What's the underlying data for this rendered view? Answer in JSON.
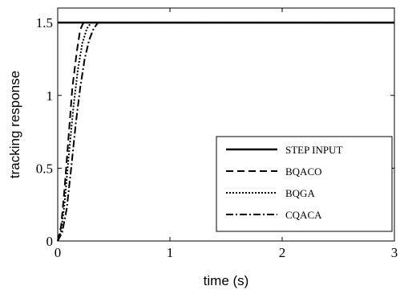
{
  "chart_data": {
    "type": "line",
    "xlabel": "time (s)",
    "ylabel": "tracking response",
    "xlim": [
      0,
      3
    ],
    "ylim": [
      0,
      1.6
    ],
    "x_ticks": [
      "0",
      "1",
      "2",
      "3"
    ],
    "y_ticks": [
      "0",
      "0.5",
      "1",
      "1.5"
    ],
    "grid": false,
    "legend_position": "bottom-right",
    "series": [
      {
        "name": "STEP INPUT",
        "line_style": "solid",
        "x": [
          0,
          3
        ],
        "y": [
          1.5,
          1.5
        ]
      },
      {
        "name": "BQACO",
        "line_style": "dashed",
        "x": [
          0,
          0.03,
          0.06,
          0.1,
          0.13,
          0.17,
          0.2,
          0.23,
          0.26,
          3
        ],
        "y": [
          0,
          0.1,
          0.35,
          0.75,
          1.05,
          1.3,
          1.45,
          1.5,
          1.5,
          1.5
        ]
      },
      {
        "name": "BQGA",
        "line_style": "dotted",
        "x": [
          0,
          0.03,
          0.06,
          0.1,
          0.14,
          0.18,
          0.22,
          0.26,
          0.3,
          3
        ],
        "y": [
          0,
          0.07,
          0.25,
          0.6,
          0.92,
          1.18,
          1.36,
          1.46,
          1.5,
          1.5
        ]
      },
      {
        "name": "CQACA",
        "line_style": "dashdot",
        "x": [
          0,
          0.04,
          0.08,
          0.12,
          0.16,
          0.2,
          0.24,
          0.28,
          0.32,
          0.36,
          3
        ],
        "y": [
          0,
          0.06,
          0.22,
          0.5,
          0.8,
          1.05,
          1.25,
          1.38,
          1.46,
          1.5,
          1.5
        ]
      }
    ]
  }
}
